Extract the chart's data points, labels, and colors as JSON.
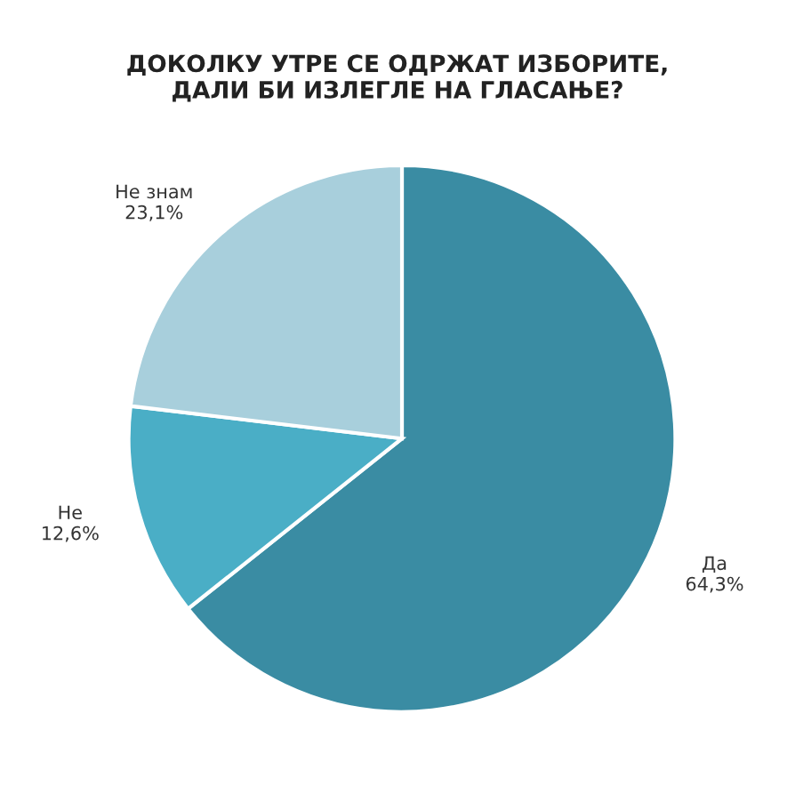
{
  "chart_data": {
    "type": "pie",
    "title": "ДОКОЛКУ УТРЕ СЕ ОДРЖАТ ИЗБОРИТЕ,\nДАЛИ БИ ИЗЛЕГЛЕ НА ГЛАСАЊЕ?",
    "categories": [
      "Да",
      "Не",
      "Не знам"
    ],
    "values": [
      64.3,
      12.6,
      23.1
    ],
    "value_labels": [
      "64,3%",
      "12,6%",
      "23,1%"
    ],
    "colors": [
      "#3a8ca3",
      "#4aaec6",
      "#a8cfdc"
    ],
    "legend": false
  }
}
